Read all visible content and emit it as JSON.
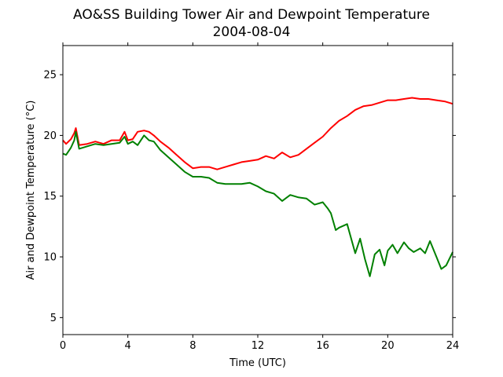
{
  "chart_data": {
    "type": "line",
    "title": "AO&SS Building Tower Air and Dewpoint Temperature",
    "subtitle": "2004-08-04",
    "xlabel": "Time (UTC)",
    "ylabel": "Air and Dewpoint Temperature (°C)",
    "xlim": [
      0,
      24
    ],
    "ylim": [
      3.6,
      27.4
    ],
    "xticks": [
      0,
      4,
      8,
      12,
      16,
      20,
      24
    ],
    "yticks": [
      5,
      10,
      15,
      20,
      25
    ],
    "grid": false,
    "legend": "none",
    "series": [
      {
        "color": "#ff0000",
        "x": [
          0,
          0.2,
          0.5,
          0.7,
          0.8,
          1.0,
          1.5,
          2.0,
          2.5,
          3.0,
          3.5,
          3.8,
          4.0,
          4.3,
          4.6,
          5.0,
          5.3,
          5.6,
          6.0,
          6.5,
          7.0,
          7.5,
          8.0,
          8.5,
          9.0,
          9.5,
          10.0,
          10.5,
          11.0,
          11.5,
          12.0,
          12.5,
          13.0,
          13.5,
          14.0,
          14.5,
          15.0,
          15.5,
          16.0,
          16.5,
          17.0,
          17.5,
          18.0,
          18.5,
          19.0,
          19.5,
          20.0,
          20.5,
          21.0,
          21.5,
          22.0,
          22.5,
          23.0,
          23.5,
          24.0
        ],
        "y": [
          19.6,
          19.3,
          19.7,
          20.2,
          20.6,
          19.2,
          19.3,
          19.5,
          19.3,
          19.6,
          19.6,
          20.3,
          19.6,
          19.7,
          20.3,
          20.4,
          20.3,
          20.0,
          19.5,
          19.0,
          18.4,
          17.8,
          17.3,
          17.4,
          17.4,
          17.2,
          17.4,
          17.6,
          17.8,
          17.9,
          18.0,
          18.3,
          18.1,
          18.6,
          18.2,
          18.4,
          18.9,
          19.4,
          19.9,
          20.6,
          21.2,
          21.6,
          22.1,
          22.4,
          22.5,
          22.7,
          22.9,
          22.9,
          23.0,
          23.1,
          23.0,
          23.0,
          22.9,
          22.8,
          22.6
        ]
      },
      {
        "color": "#008000",
        "x": [
          0,
          0.2,
          0.5,
          0.7,
          0.8,
          1.0,
          1.5,
          2.0,
          2.5,
          3.0,
          3.5,
          3.8,
          4.0,
          4.3,
          4.6,
          5.0,
          5.3,
          5.6,
          6.0,
          6.5,
          7.0,
          7.5,
          8.0,
          8.5,
          9.0,
          9.5,
          10.0,
          10.5,
          11.0,
          11.5,
          12.0,
          12.5,
          13.0,
          13.5,
          14.0,
          14.5,
          15.0,
          15.5,
          16.0,
          16.3,
          16.5,
          16.8,
          17.0,
          17.5,
          18.0,
          18.3,
          18.6,
          18.9,
          19.2,
          19.5,
          19.8,
          20.0,
          20.3,
          20.6,
          21.0,
          21.3,
          21.6,
          22.0,
          22.3,
          22.6,
          23.0,
          23.3,
          23.6,
          24.0
        ],
        "y": [
          18.5,
          18.4,
          19.0,
          19.6,
          20.3,
          18.9,
          19.1,
          19.3,
          19.2,
          19.3,
          19.4,
          19.9,
          19.3,
          19.5,
          19.2,
          20.0,
          19.6,
          19.5,
          18.8,
          18.2,
          17.6,
          17.0,
          16.6,
          16.6,
          16.5,
          16.1,
          16.0,
          16.0,
          16.0,
          16.1,
          15.8,
          15.4,
          15.2,
          14.6,
          15.1,
          14.9,
          14.8,
          14.3,
          14.5,
          14.0,
          13.6,
          12.2,
          12.4,
          12.7,
          10.3,
          11.5,
          9.8,
          8.4,
          10.2,
          10.6,
          9.3,
          10.5,
          11.0,
          10.3,
          11.2,
          10.7,
          10.4,
          10.7,
          10.3,
          11.3,
          10.0,
          9.0,
          9.3,
          10.4
        ]
      }
    ]
  }
}
